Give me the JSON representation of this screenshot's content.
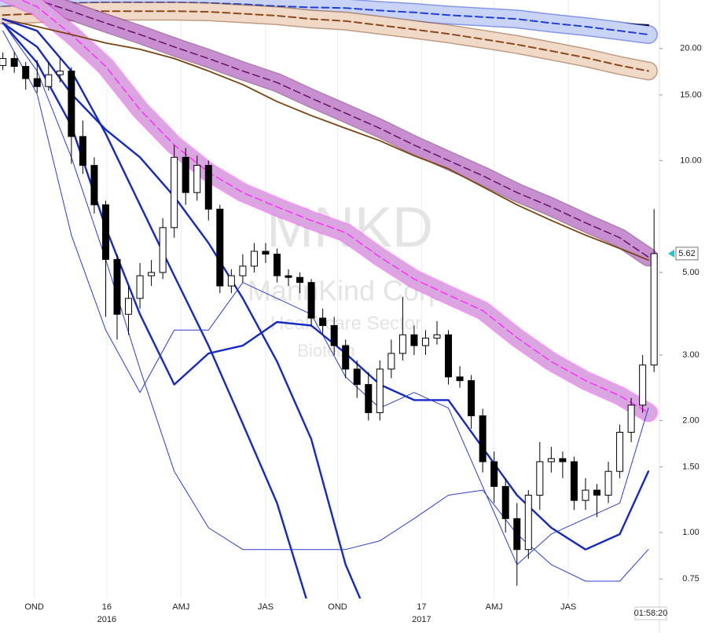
{
  "chart_data": {
    "type": "candlestick",
    "watermark": [
      "MNKD",
      "MannKind Corp",
      "Healthcare Sector",
      "Biotech"
    ],
    "countdown": "01:58:20",
    "log_y": true,
    "grid": "x",
    "up_color": "#ffffff",
    "down_color": "#000000",
    "xlim": [
      -0.5,
      114.8
    ],
    "ylim": [
      0.665,
      27.0
    ],
    "yticks": [
      {
        "value": 0.75,
        "label": "0.75"
      },
      {
        "value": 1,
        "label": "1.00"
      },
      {
        "value": 1.5,
        "label": "1.50"
      },
      {
        "value": 2,
        "label": "2.00"
      },
      {
        "value": 3,
        "label": "3.00"
      },
      {
        "value": 5,
        "label": "5.00"
      },
      {
        "value": 10,
        "label": "10.00"
      },
      {
        "value": 15,
        "label": "15.00"
      },
      {
        "value": 20,
        "label": "20.00"
      }
    ],
    "xticks": [
      {
        "value": 5.5,
        "label": "OND"
      },
      {
        "value": 18.2,
        "label": "16"
      },
      {
        "value": 31.2,
        "label": "AMJ"
      },
      {
        "value": 46,
        "label": "JAS"
      },
      {
        "value": 58.6,
        "label": "OND"
      },
      {
        "value": 73.3,
        "label": "17"
      },
      {
        "value": 86,
        "label": "AMJ"
      },
      {
        "value": 99,
        "label": "JAS"
      }
    ],
    "year_labels": [
      {
        "value": 18.2,
        "label": "2016"
      },
      {
        "value": 73.3,
        "label": "2017"
      }
    ],
    "x": [
      0,
      2,
      4,
      6,
      8,
      10,
      12,
      14,
      16,
      18,
      20,
      22,
      24,
      26,
      28,
      30,
      32,
      34,
      36,
      38,
      40,
      42,
      44,
      46,
      48,
      50,
      52,
      54,
      56,
      58,
      60,
      62,
      64,
      66,
      68,
      70,
      72,
      74,
      76,
      78,
      80,
      82,
      84,
      86,
      88,
      90,
      92,
      94,
      96,
      98,
      100,
      102,
      104,
      106,
      108,
      110,
      112,
      114
    ],
    "open": [
      18.0,
      18.8,
      17.9,
      16.6,
      15.8,
      17.0,
      17.4,
      11.6,
      9.7,
      7.6,
      5.42,
      3.86,
      4.26,
      4.9,
      5.0,
      6.6,
      10.2,
      8.2,
      9.7,
      7.4,
      4.6,
      4.9,
      5.2,
      5.7,
      5.6,
      4.9,
      4.85,
      4.7,
      3.77,
      3.6,
      3.18,
      2.75,
      2.5,
      2.1,
      2.75,
      3.03,
      3.4,
      3.18,
      3.33,
      3.4,
      2.62,
      2.56,
      2.06,
      1.55,
      1.33,
      1.09,
      0.9,
      1.26,
      1.55,
      1.58,
      1.55,
      1.22,
      1.3,
      1.26,
      1.46,
      1.86,
      2.2,
      2.82
    ],
    "high": [
      19.5,
      19.6,
      18.4,
      18.6,
      18.4,
      18.8,
      17.8,
      12.8,
      10.2,
      7.8,
      5.6,
      4.6,
      5.3,
      5.4,
      7.0,
      11.0,
      10.8,
      10.3,
      10.0,
      7.6,
      5.1,
      5.6,
      6.0,
      6.0,
      5.8,
      5.1,
      5.0,
      4.8,
      4.0,
      3.8,
      3.3,
      2.9,
      2.7,
      2.9,
      3.3,
      4.3,
      3.6,
      3.5,
      3.7,
      3.5,
      2.8,
      2.65,
      2.15,
      1.65,
      1.4,
      1.2,
      1.3,
      1.75,
      1.7,
      1.65,
      1.6,
      1.4,
      1.35,
      1.55,
      1.95,
      2.3,
      3.0,
      7.4
    ],
    "low": [
      17.5,
      17.2,
      15.5,
      15.2,
      15.4,
      16.2,
      9.8,
      9.2,
      7.2,
      3.8,
      3.3,
      3.4,
      4.0,
      4.6,
      4.8,
      6.2,
      7.6,
      7.8,
      6.9,
      4.4,
      4.4,
      4.7,
      5.0,
      5.3,
      4.7,
      4.6,
      4.4,
      3.6,
      3.4,
      3.0,
      2.6,
      2.3,
      2.0,
      2.0,
      2.6,
      2.9,
      3.0,
      3.0,
      3.2,
      2.5,
      2.45,
      1.9,
      1.45,
      1.2,
      1.0,
      0.72,
      0.85,
      1.15,
      1.45,
      1.4,
      1.15,
      1.15,
      1.1,
      1.2,
      1.4,
      1.75,
      2.1,
      2.7
    ],
    "close": [
      18.8,
      17.9,
      16.6,
      15.8,
      17.0,
      17.4,
      11.6,
      9.7,
      7.6,
      5.42,
      3.86,
      4.26,
      4.9,
      5.0,
      6.6,
      10.2,
      8.2,
      9.7,
      7.4,
      4.6,
      4.9,
      5.2,
      5.7,
      5.6,
      4.9,
      4.85,
      4.7,
      3.77,
      3.6,
      3.18,
      2.75,
      2.5,
      2.1,
      2.75,
      3.03,
      3.4,
      3.18,
      3.33,
      3.4,
      2.62,
      2.56,
      2.06,
      1.55,
      1.33,
      1.09,
      0.9,
      1.26,
      1.55,
      1.58,
      1.55,
      1.22,
      1.3,
      1.26,
      1.46,
      1.86,
      2.2,
      2.82,
      5.62
    ],
    "overlay_x": [
      0,
      6,
      12,
      18,
      24,
      30,
      36,
      42,
      48,
      54,
      60,
      66,
      72,
      78,
      84,
      90,
      96,
      102,
      108,
      113
    ],
    "overlays": [
      {
        "color": "#000000",
        "width": 2.5,
        "dash": false,
        "values": [
          26.9,
          26.7,
          26.5,
          26.3,
          26.1,
          25.9,
          25.7,
          25.5,
          25.3,
          25.1,
          24.9,
          24.7,
          24.5,
          24.3,
          24.1,
          23.9,
          23.7,
          23.5,
          23.3,
          23.1
        ]
      },
      {
        "color": "#1f3fd8",
        "width": 2,
        "dash": true,
        "band": "#c9d3f5",
        "values": [
          25.9,
          26.2,
          26.5,
          26.6,
          26.6,
          26.6,
          26.5,
          26.3,
          26.0,
          25.8,
          25.7,
          25.3,
          25.0,
          24.6,
          24.3,
          24.0,
          23.4,
          22.9,
          22.3,
          21.8
        ]
      },
      {
        "color": "#8a4a1c",
        "width": 2,
        "dash": true,
        "band": "#f0d9c6",
        "values": [
          24.6,
          24.8,
          25.1,
          25.2,
          25.2,
          25.2,
          25.1,
          24.8,
          24.5,
          24.0,
          23.7,
          23.1,
          22.5,
          21.9,
          21.2,
          20.5,
          19.7,
          18.9,
          18.0,
          17.4
        ]
      },
      {
        "color": "#6b1a6b",
        "width": 1.6,
        "dash": true,
        "band": "#c88fd0",
        "values": [
          28.9,
          27.0,
          25.2,
          23.4,
          21.8,
          20.2,
          18.8,
          17.4,
          16.2,
          14.7,
          13.4,
          12.2,
          11.0,
          10.0,
          9.1,
          8.2,
          7.5,
          6.8,
          6.2,
          5.5
        ]
      },
      {
        "color": "#ff33ff",
        "width": 1.6,
        "dash": true,
        "band": "#d9a6e0",
        "values": [
          28.4,
          25.9,
          21.8,
          17.9,
          13.7,
          11.0,
          9.3,
          8.2,
          7.5,
          6.9,
          6.4,
          5.5,
          4.8,
          4.35,
          3.95,
          3.34,
          2.88,
          2.56,
          2.33,
          2.1
        ]
      },
      {
        "color": "#7a4510",
        "width": 1.8,
        "dash": false,
        "values": [
          24.0,
          22.9,
          21.8,
          20.7,
          19.9,
          18.8,
          17.4,
          16.0,
          14.4,
          13.2,
          12.2,
          11.3,
          10.3,
          9.5,
          8.5,
          7.6,
          6.9,
          6.3,
          5.8,
          5.4
        ]
      },
      {
        "color": "#1428c8",
        "width": 2.4,
        "dash": false,
        "values": [
          24.0,
          22.3,
          17.4,
          11.8,
          7.6,
          4.9,
          3.18,
          1.96,
          1.2,
          0.6,
          null,
          null,
          null,
          null,
          null,
          null,
          null,
          null,
          null,
          null
        ]
      },
      {
        "color": "#1428c8",
        "width": 2.4,
        "dash": false,
        "values": [
          23.4,
          20.2,
          15.1,
          12.1,
          10.2,
          8.0,
          6.0,
          4.26,
          2.88,
          1.78,
          0.82,
          0.5,
          null,
          null,
          null,
          null,
          null,
          null,
          null,
          null
        ]
      },
      {
        "color": "#1428c8",
        "width": 2.4,
        "dash": false,
        "values": [
          23.4,
          18.3,
          12.4,
          6.6,
          3.86,
          2.5,
          3.03,
          3.18,
          3.68,
          3.6,
          3.03,
          2.5,
          2.27,
          2.27,
          1.69,
          1.26,
          1.03,
          0.9,
          0.99,
          1.46
        ]
      },
      {
        "color": "#2a3fd0",
        "width": 1,
        "dash": false,
        "values": [
          22.3,
          15.1,
          6.3,
          3.5,
          2.38,
          3.5,
          3.5,
          4.7,
          4.26,
          3.86,
          2.62,
          2.16,
          2.38,
          2.16,
          1.33,
          0.82,
          0.99,
          1.09,
          1.2,
          2.16
        ]
      },
      {
        "color": "#2a3fd0",
        "width": 1,
        "dash": false,
        "values": [
          23.4,
          17.4,
          10.2,
          5.42,
          2.75,
          1.46,
          1.03,
          0.9,
          0.9,
          0.9,
          0.9,
          0.95,
          1.09,
          1.26,
          1.3,
          0.99,
          0.82,
          0.74,
          0.74,
          0.9
        ]
      }
    ]
  }
}
